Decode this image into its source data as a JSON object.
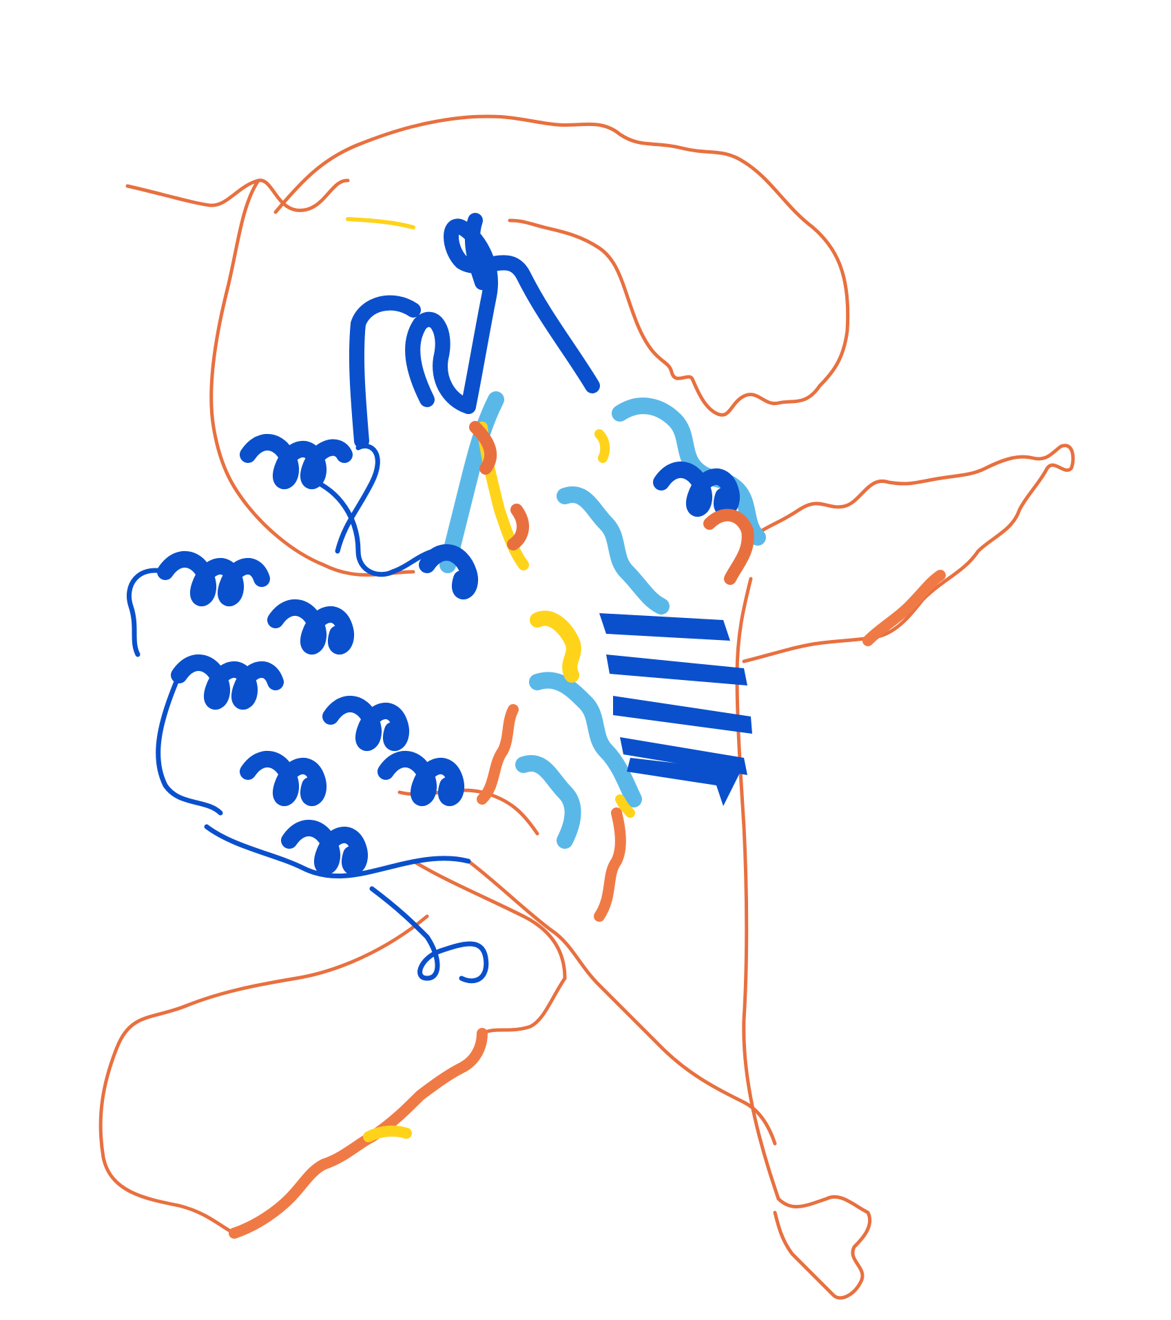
{
  "image": {
    "subject": "protein-cartoon-structure",
    "background": "#ffffff"
  },
  "colors": {
    "very_high": "#0053d6",
    "confident": "#65cbf3",
    "low": "#ffdb13",
    "very_low": "#ff7d45"
  }
}
